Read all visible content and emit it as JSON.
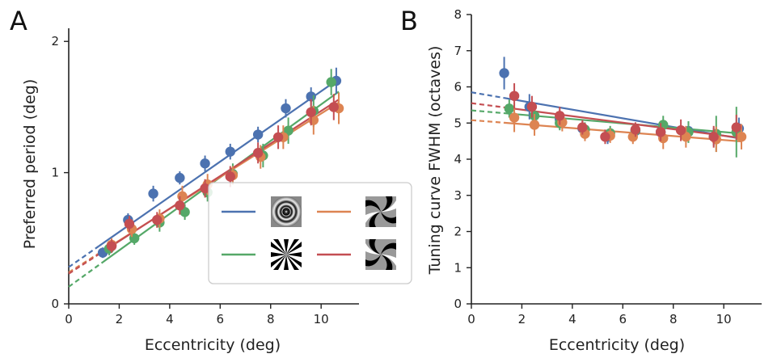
{
  "chart_data": [
    {
      "type": "scatter",
      "panel_label": "A",
      "xlabel": "Eccentricity (deg)",
      "ylabel": "Preferred period (deg)",
      "xlim": [
        0,
        11.5
      ],
      "ylim": [
        0,
        2.1
      ],
      "xticks": [
        0,
        2,
        4,
        6,
        8,
        10
      ],
      "yticks": [
        0,
        1,
        2
      ],
      "grid": false,
      "legend_placement": "bottom-right",
      "series": [
        {
          "stimulus": "annulus",
          "color": "#4c72b0",
          "x": [
            1.35,
            2.35,
            3.35,
            4.4,
            5.4,
            6.4,
            7.5,
            8.6,
            9.6,
            10.6
          ],
          "y": [
            0.39,
            0.64,
            0.84,
            0.96,
            1.07,
            1.16,
            1.29,
            1.49,
            1.58,
            1.7
          ],
          "err": [
            0.04,
            0.05,
            0.06,
            0.05,
            0.06,
            0.06,
            0.06,
            0.07,
            0.07,
            0.1
          ],
          "fit": {
            "intercept": 0.28,
            "slope": 0.134,
            "x_solid": [
              1.2,
              10.7
            ]
          }
        },
        {
          "stimulus": "pinwheel",
          "color": "#55a868",
          "x": [
            1.6,
            2.6,
            3.6,
            4.6,
            5.5,
            6.5,
            7.7,
            8.7,
            9.7,
            10.4
          ],
          "y": [
            0.42,
            0.5,
            0.62,
            0.7,
            0.85,
            0.99,
            1.13,
            1.32,
            1.47,
            1.69
          ],
          "err": [
            0.05,
            0.05,
            0.07,
            0.06,
            0.07,
            0.08,
            0.09,
            0.1,
            0.12,
            0.1
          ],
          "fit": {
            "intercept": 0.13,
            "slope": 0.139,
            "x_solid": [
              1.3,
              10.7
            ]
          }
        },
        {
          "stimulus": "spiral (orange)",
          "color": "#dd8452",
          "x": [
            1.7,
            2.5,
            3.6,
            4.5,
            5.5,
            6.5,
            7.6,
            8.5,
            9.7,
            10.7
          ],
          "y": [
            0.45,
            0.57,
            0.65,
            0.82,
            0.91,
            0.98,
            1.12,
            1.27,
            1.4,
            1.49
          ],
          "err": [
            0.05,
            0.06,
            0.07,
            0.08,
            0.08,
            0.07,
            0.09,
            0.09,
            0.11,
            0.12
          ],
          "fit": {
            "intercept": 0.24,
            "slope": 0.121,
            "x_solid": [
              1.3,
              10.7
            ]
          }
        },
        {
          "stimulus": "spiral (red)",
          "color": "#c44e52",
          "x": [
            1.7,
            2.4,
            3.5,
            4.4,
            5.4,
            6.4,
            7.5,
            8.3,
            9.6,
            10.5
          ],
          "y": [
            0.44,
            0.61,
            0.64,
            0.75,
            0.88,
            0.97,
            1.15,
            1.27,
            1.46,
            1.5
          ],
          "err": [
            0.05,
            0.06,
            0.06,
            0.07,
            0.07,
            0.08,
            0.08,
            0.09,
            0.1,
            0.1
          ],
          "fit": {
            "intercept": 0.23,
            "slope": 0.124,
            "x_solid": [
              1.3,
              10.7
            ]
          }
        }
      ]
    },
    {
      "type": "scatter",
      "panel_label": "B",
      "xlabel": "Eccentricity (deg)",
      "ylabel": "Tuning curve FWHM (octaves)",
      "xlim": [
        0,
        11.5
      ],
      "ylim": [
        0,
        8
      ],
      "xticks": [
        0,
        2,
        4,
        6,
        8,
        10
      ],
      "yticks": [
        0,
        1,
        2,
        3,
        4,
        5,
        6,
        7,
        8
      ],
      "grid": false,
      "series": [
        {
          "stimulus": "annulus",
          "color": "#4c72b0",
          "x": [
            1.3,
            2.3,
            3.5,
            4.4,
            5.4,
            6.5,
            7.5,
            8.6,
            9.6,
            10.6
          ],
          "y": [
            6.38,
            5.45,
            5.1,
            4.85,
            4.62,
            4.78,
            4.75,
            4.78,
            4.62,
            4.85
          ],
          "err": [
            0.45,
            0.35,
            0.25,
            0.2,
            0.2,
            0.2,
            0.25,
            0.25,
            0.25,
            0.3
          ],
          "fit": {
            "intercept": 5.85,
            "slope": -0.12,
            "x_solid": [
              1.3,
              10.7
            ]
          }
        },
        {
          "stimulus": "pinwheel",
          "color": "#55a868",
          "x": [
            1.5,
            2.5,
            3.5,
            4.5,
            5.5,
            6.5,
            7.6,
            8.6,
            9.7,
            10.5
          ],
          "y": [
            5.4,
            5.2,
            5.0,
            4.82,
            4.72,
            4.8,
            4.95,
            4.75,
            4.7,
            4.75
          ],
          "err": [
            0.25,
            0.25,
            0.2,
            0.2,
            0.2,
            0.2,
            0.25,
            0.3,
            0.5,
            0.7
          ],
          "fit": {
            "intercept": 5.35,
            "slope": -0.06,
            "x_solid": [
              1.3,
              10.7
            ]
          }
        },
        {
          "stimulus": "spiral (orange)",
          "color": "#dd8452",
          "x": [
            1.7,
            2.5,
            3.6,
            4.5,
            5.5,
            6.4,
            7.6,
            8.5,
            9.7,
            10.7
          ],
          "y": [
            5.15,
            4.95,
            5.02,
            4.7,
            4.65,
            4.62,
            4.58,
            4.62,
            4.55,
            4.62
          ],
          "err": [
            0.4,
            0.3,
            0.25,
            0.2,
            0.2,
            0.2,
            0.3,
            0.3,
            0.35,
            0.35
          ],
          "fit": {
            "intercept": 5.08,
            "slope": -0.055,
            "x_solid": [
              1.3,
              10.7
            ]
          }
        },
        {
          "stimulus": "spiral (red)",
          "color": "#c44e52",
          "x": [
            1.7,
            2.4,
            3.5,
            4.4,
            5.3,
            6.5,
            7.5,
            8.3,
            9.6,
            10.5
          ],
          "y": [
            5.75,
            5.45,
            5.2,
            4.88,
            4.62,
            4.82,
            4.75,
            4.8,
            4.62,
            4.88
          ],
          "err": [
            0.35,
            0.3,
            0.25,
            0.2,
            0.2,
            0.2,
            0.25,
            0.3,
            0.3,
            0.35
          ],
          "fit": {
            "intercept": 5.55,
            "slope": -0.09,
            "x_solid": [
              1.3,
              10.7
            ]
          }
        }
      ]
    }
  ],
  "legend": {
    "entries": [
      {
        "stimulus": "annulus",
        "color": "#4c72b0",
        "icon": "annulus-stimulus-icon"
      },
      {
        "stimulus": "spiral (orange)",
        "color": "#dd8452",
        "icon": "spiral-stimulus-icon"
      },
      {
        "stimulus": "pinwheel",
        "color": "#55a868",
        "icon": "pinwheel-stimulus-icon"
      },
      {
        "stimulus": "spiral (red)",
        "color": "#c44e52",
        "icon": "reverse-spiral-stimulus-icon"
      }
    ]
  }
}
